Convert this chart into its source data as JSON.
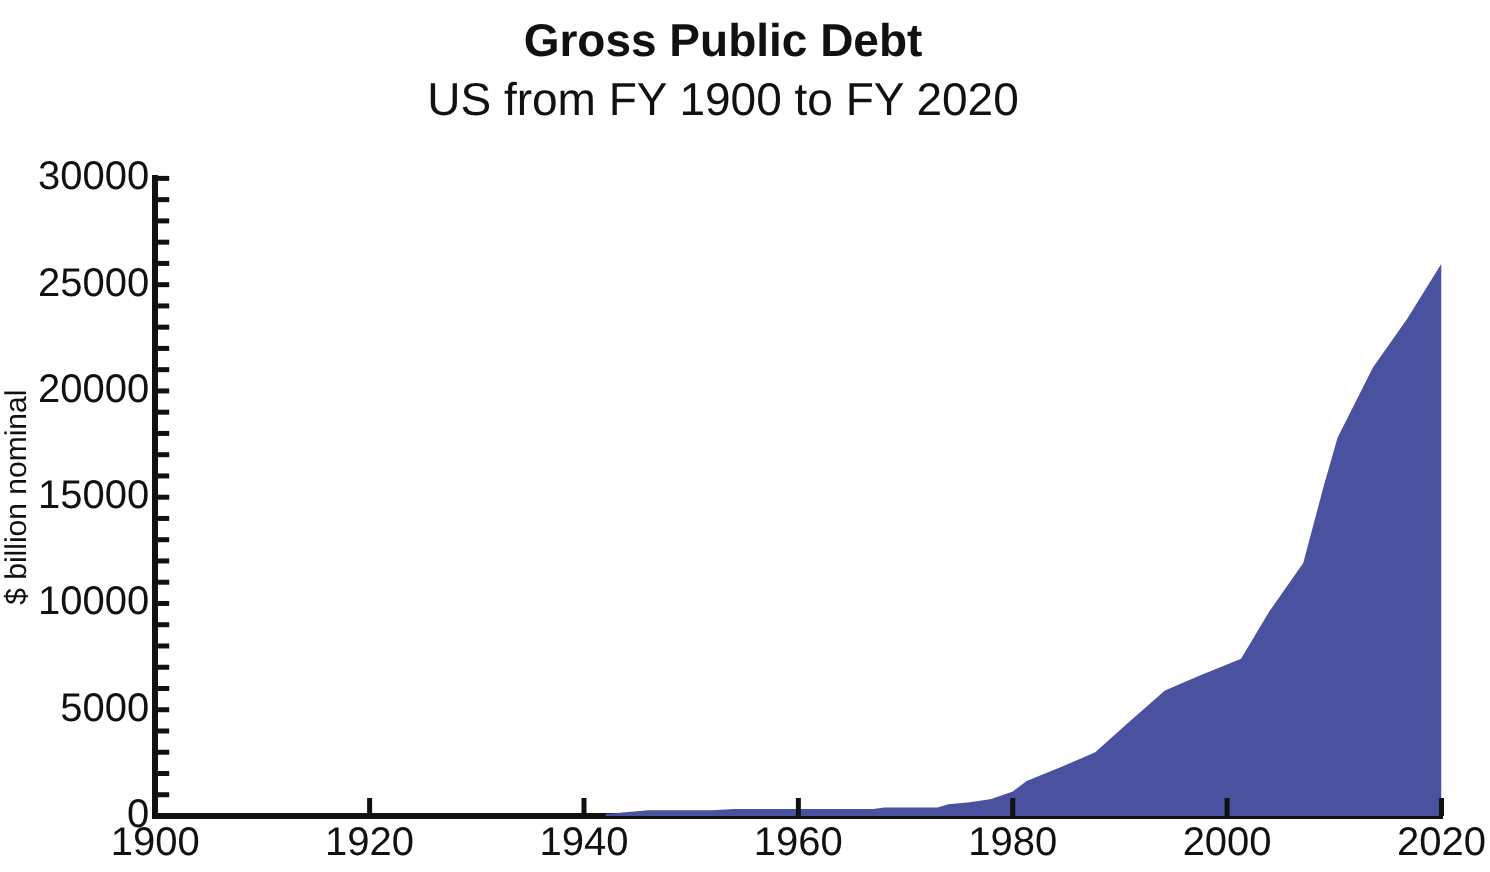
{
  "chart_data": {
    "type": "area",
    "title": "Gross Public Debt",
    "subtitle": "US from FY 1900 to FY 2020",
    "ylabel": "$ billion nominal",
    "x": [
      1942,
      1946,
      1952,
      1954,
      1967,
      1968,
      1973,
      1974,
      1976,
      1978,
      1980,
      1981.3,
      1984.5,
      1987.7,
      1990.9,
      1994.2,
      1997.4,
      2001.3,
      2003.9,
      2007.1,
      2009,
      2010.3,
      2013.6,
      2016.8,
      2020
    ],
    "series": [
      {
        "color": "#4a52a0",
        "values": [
          100,
          270,
          270,
          330,
          330,
          400,
          400,
          550,
          650,
          800,
          1150,
          1650,
          2300,
          3000,
          4450,
          5900,
          6600,
          7400,
          9600,
          11900,
          15500,
          17800,
          21100,
          23400,
          26000
        ]
      }
    ],
    "xlim": [
      1900,
      2020
    ],
    "xticks": [
      1900,
      1920,
      1940,
      1960,
      1980,
      2000,
      2020
    ],
    "ylim": [
      0,
      30000
    ],
    "yticks": [
      0,
      {
        "value": 1000,
        "label": null
      },
      {
        "value": 2000,
        "label": null
      },
      {
        "value": 3000,
        "label": null
      },
      {
        "value": 4000,
        "label": null
      },
      5000,
      {
        "value": 6000,
        "label": null
      },
      {
        "value": 7000,
        "label": null
      },
      {
        "value": 8000,
        "label": null
      },
      {
        "value": 9000,
        "label": null
      },
      10000,
      {
        "value": 11000,
        "label": null
      },
      {
        "value": 12000,
        "label": null
      },
      {
        "value": 13000,
        "label": null
      },
      {
        "value": 14000,
        "label": null
      },
      15000,
      {
        "value": 16000,
        "label": null
      },
      {
        "value": 17000,
        "label": null
      },
      {
        "value": 18000,
        "label": null
      },
      {
        "value": 19000,
        "label": null
      },
      20000,
      {
        "value": 21000,
        "label": null
      },
      {
        "value": 22000,
        "label": null
      },
      {
        "value": 23000,
        "label": null
      },
      {
        "value": 24000,
        "label": null
      },
      25000,
      {
        "value": 26000,
        "label": null
      },
      {
        "value": 27000,
        "label": null
      },
      {
        "value": 28000,
        "label": null
      },
      {
        "value": 29000,
        "label": null
      },
      30000
    ],
    "grid": false,
    "legend": false
  }
}
